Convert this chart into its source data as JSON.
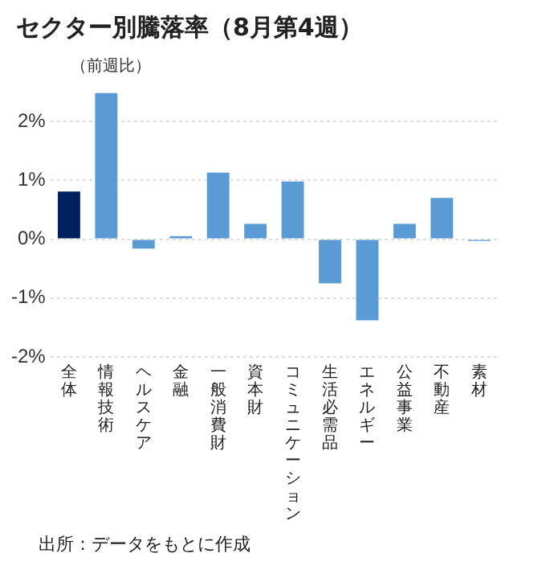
{
  "chart_data": {
    "type": "bar",
    "title": "セクター別騰落率（8月第4週）",
    "ylabel": "（前週比）",
    "categories": [
      "全体",
      "情報技術",
      "ヘルスケア",
      "金融",
      "一般消費財",
      "資本財",
      "コミュニケーション",
      "生活必需品",
      "エネルギー",
      "公益事業",
      "不動産",
      "素材"
    ],
    "values": [
      0.81,
      2.48,
      -0.16,
      0.05,
      1.13,
      0.26,
      0.98,
      -0.75,
      -1.38,
      0.26,
      0.7,
      -0.03
    ],
    "colors": [
      "#002060",
      "#5b9bd5",
      "#5b9bd5",
      "#5b9bd5",
      "#5b9bd5",
      "#5b9bd5",
      "#5b9bd5",
      "#5b9bd5",
      "#5b9bd5",
      "#5b9bd5",
      "#5b9bd5",
      "#5b9bd5"
    ],
    "ylim": [
      -2,
      2.5
    ],
    "yticks": [
      {
        "value": -2,
        "label": "-2%"
      },
      {
        "value": -1,
        "label": "-1%"
      },
      {
        "value": 0,
        "label": "0%"
      },
      {
        "value": 1,
        "label": "1%"
      },
      {
        "value": 2,
        "label": "2%"
      }
    ],
    "grid": "y",
    "legend": false,
    "annotations": [
      "出所：データをもとに作成"
    ]
  }
}
